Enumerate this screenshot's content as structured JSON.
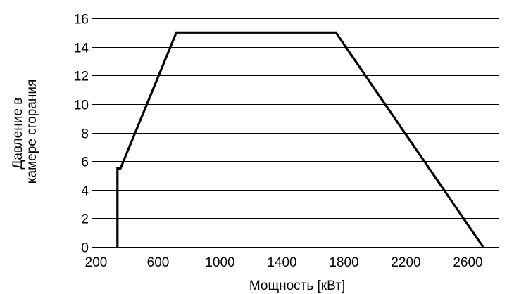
{
  "chart_data": {
    "type": "line",
    "title": "",
    "xlabel": "Мощность [кВт]",
    "ylabel_lines": [
      "Давление в",
      "камере сгорания"
    ],
    "xlim": [
      200,
      2800
    ],
    "ylim": [
      0,
      16
    ],
    "x_ticks": [
      200,
      600,
      1000,
      1400,
      1800,
      2200,
      2600
    ],
    "y_ticks": [
      0,
      2,
      4,
      6,
      8,
      10,
      12,
      14,
      16
    ],
    "x_grid": [
      200,
      400,
      600,
      800,
      1000,
      1200,
      1400,
      1600,
      1800,
      2000,
      2200,
      2400,
      2600,
      2800
    ],
    "y_grid": [
      0,
      2,
      4,
      6,
      8,
      10,
      12,
      14,
      16
    ],
    "grid": true,
    "series": [
      {
        "x": [
          340,
          340,
          360,
          720,
          1750,
          2700
        ],
        "y": [
          0,
          5.5,
          5.5,
          15,
          15,
          0
        ],
        "color": "#000000"
      }
    ]
  }
}
